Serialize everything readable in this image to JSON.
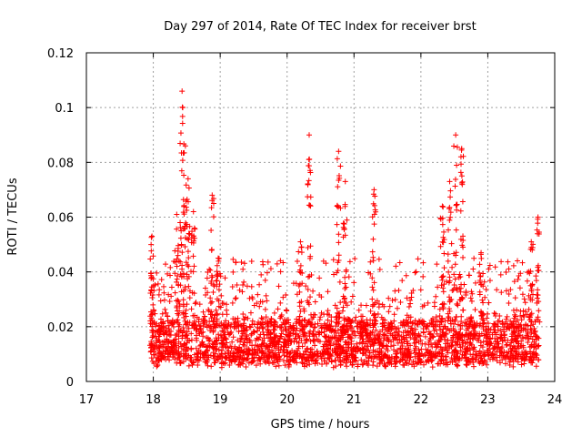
{
  "chart_data": {
    "type": "scatter",
    "title": "Day 297 of 2014, Rate Of TEC Index for receiver brst",
    "xlabel": "GPS time / hours",
    "ylabel": "ROTI / TECUs",
    "xlim": [
      17,
      24
    ],
    "ylim": [
      0,
      0.12
    ],
    "xticks": [
      "17",
      "18",
      "19",
      "20",
      "21",
      "22",
      "23",
      "24"
    ],
    "yticks": [
      "0",
      "0.02",
      "0.04",
      "0.06",
      "0.08",
      "0.1",
      "0.12"
    ],
    "grid": true,
    "marker": "+",
    "color": "#ff0000",
    "series": [
      {
        "name": "ROTI",
        "x_range": [
          17.95,
          23.78
        ],
        "baseline_band": [
          0.005,
          0.02
        ],
        "scatter_band": [
          0.02,
          0.045
        ],
        "spikes": [
          {
            "x": 17.98,
            "peak": 0.053
          },
          {
            "x": 18.35,
            "peak": 0.061
          },
          {
            "x": 18.43,
            "peak": 0.106
          },
          {
            "x": 18.48,
            "peak": 0.086
          },
          {
            "x": 18.52,
            "peak": 0.074
          },
          {
            "x": 18.6,
            "peak": 0.062
          },
          {
            "x": 18.88,
            "peak": 0.068
          },
          {
            "x": 18.97,
            "peak": 0.045
          },
          {
            "x": 20.2,
            "peak": 0.051
          },
          {
            "x": 20.33,
            "peak": 0.09
          },
          {
            "x": 20.77,
            "peak": 0.084
          },
          {
            "x": 20.87,
            "peak": 0.073
          },
          {
            "x": 21.3,
            "peak": 0.07
          },
          {
            "x": 22.32,
            "peak": 0.064
          },
          {
            "x": 22.43,
            "peak": 0.073
          },
          {
            "x": 22.52,
            "peak": 0.09
          },
          {
            "x": 22.61,
            "peak": 0.085
          },
          {
            "x": 22.9,
            "peak": 0.047
          },
          {
            "x": 23.65,
            "peak": 0.051
          },
          {
            "x": 23.75,
            "peak": 0.06
          }
        ]
      }
    ]
  }
}
